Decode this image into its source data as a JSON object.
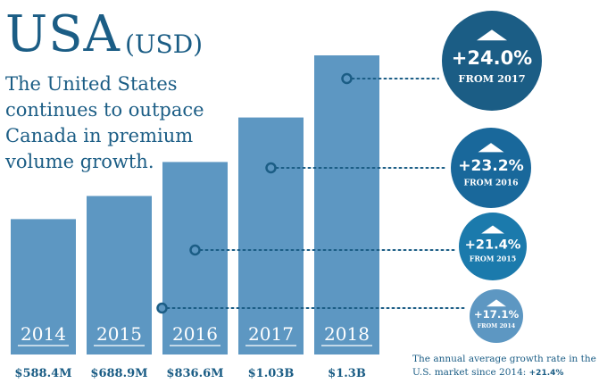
{
  "header": {
    "country": "USA",
    "currency": "(USD)",
    "subtitle": "The United States continues to outpace Canada in premium volume growth."
  },
  "footnote": {
    "text": "The annual average growth rate in the U.S. market since 2014:",
    "value": "+21.4%"
  },
  "colors": {
    "bar": "#5d97c2",
    "text_dark": "#1b5d85",
    "connector": "#1b5d85"
  },
  "chart_data": {
    "type": "bar",
    "title": "USA (USD)",
    "categories": [
      "2014",
      "2015",
      "2016",
      "2017",
      "2018"
    ],
    "values": [
      588.4,
      688.9,
      836.6,
      1030,
      1300
    ],
    "unit": "millions USD",
    "value_labels": [
      "$588.4M",
      "$688.9M",
      "$836.6M",
      "$1.03B",
      "$1.3B"
    ],
    "ylim": [
      0,
      1300
    ],
    "growth": [
      {
        "year": "2015",
        "value": "+17.1%",
        "label": "FROM 2014"
      },
      {
        "year": "2016",
        "value": "+21.4%",
        "label": "FROM 2015"
      },
      {
        "year": "2017",
        "value": "+23.2%",
        "label": "FROM 2016"
      },
      {
        "year": "2018",
        "value": "+24.0%",
        "label": "FROM 2017"
      }
    ]
  }
}
